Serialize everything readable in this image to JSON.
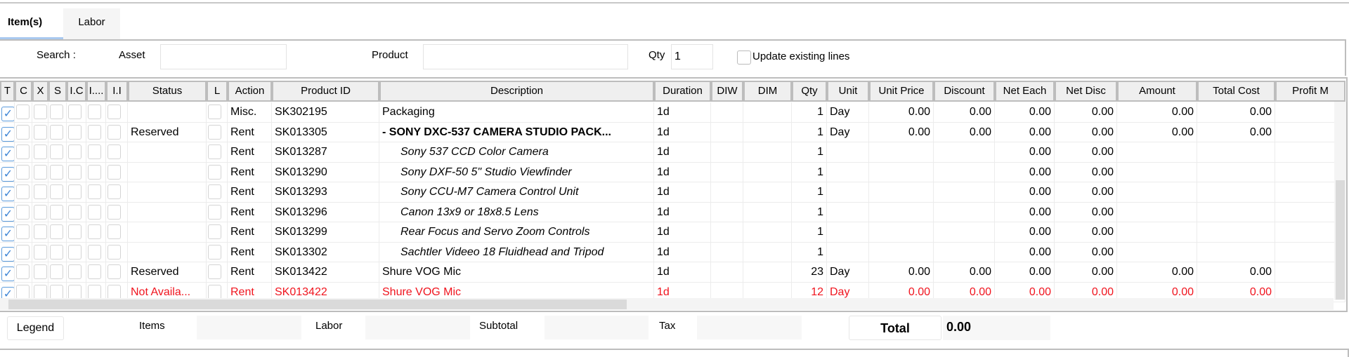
{
  "tabs": [
    {
      "label": "Item(s)",
      "active": true
    },
    {
      "label": "Labor",
      "active": false
    }
  ],
  "search": {
    "label": "Search :",
    "asset_label": "Asset",
    "asset_value": "",
    "product_label": "Product",
    "product_value": "",
    "qty_label": "Qty",
    "qty_value": "1",
    "update_label": "Update existing lines",
    "update_checked": false
  },
  "columns": [
    "T",
    "C",
    "X",
    "S",
    "I.C",
    "I....",
    "I.I",
    "Status",
    "L",
    "Action",
    "Product ID",
    "Description",
    "Duration",
    "DIW",
    "DIM",
    "Qty",
    "Unit",
    "Unit Price",
    "Discount",
    "Net Each",
    "Net Disc",
    "Amount",
    "Total Cost",
    "Profit M"
  ],
  "rows": [
    {
      "status": "",
      "action": "Misc.",
      "product_id": "SK302195",
      "description": "Packaging",
      "style": "normal",
      "duration": "1d",
      "diw": "",
      "dim": "",
      "qty": "1",
      "unit": "Day",
      "unit_price": "0.00",
      "discount": "0.00",
      "net_each": "0.00",
      "net_disc": "0.00",
      "amount": "0.00",
      "total_cost": "0.00",
      "profit": ""
    },
    {
      "status": "Reserved",
      "action": "Rent",
      "product_id": "SK013305",
      "description": "- SONY DXC-537 CAMERA STUDIO PACK...",
      "style": "bold",
      "duration": "1d",
      "diw": "",
      "dim": "",
      "qty": "1",
      "unit": "Day",
      "unit_price": "0.00",
      "discount": "0.00",
      "net_each": "0.00",
      "net_disc": "0.00",
      "amount": "0.00",
      "total_cost": "0.00",
      "profit": ""
    },
    {
      "status": "",
      "action": "Rent",
      "product_id": "SK013287",
      "description": "Sony 537 CCD Color Camera",
      "style": "italic",
      "duration": "1d",
      "diw": "",
      "dim": "",
      "qty": "1",
      "unit": "",
      "unit_price": "",
      "discount": "",
      "net_each": "0.00",
      "net_disc": "0.00",
      "amount": "",
      "total_cost": "",
      "profit": ""
    },
    {
      "status": "",
      "action": "Rent",
      "product_id": "SK013290",
      "description": "Sony DXF-50 5\" Studio Viewfinder",
      "style": "italic",
      "duration": "1d",
      "diw": "",
      "dim": "",
      "qty": "1",
      "unit": "",
      "unit_price": "",
      "discount": "",
      "net_each": "0.00",
      "net_disc": "0.00",
      "amount": "",
      "total_cost": "",
      "profit": ""
    },
    {
      "status": "",
      "action": "Rent",
      "product_id": "SK013293",
      "description": "Sony CCU-M7 Camera Control Unit",
      "style": "italic",
      "duration": "1d",
      "diw": "",
      "dim": "",
      "qty": "1",
      "unit": "",
      "unit_price": "",
      "discount": "",
      "net_each": "0.00",
      "net_disc": "0.00",
      "amount": "",
      "total_cost": "",
      "profit": ""
    },
    {
      "status": "",
      "action": "Rent",
      "product_id": "SK013296",
      "description": "Canon 13x9 or 18x8.5 Lens",
      "style": "italic",
      "duration": "1d",
      "diw": "",
      "dim": "",
      "qty": "1",
      "unit": "",
      "unit_price": "",
      "discount": "",
      "net_each": "0.00",
      "net_disc": "0.00",
      "amount": "",
      "total_cost": "",
      "profit": ""
    },
    {
      "status": "",
      "action": "Rent",
      "product_id": "SK013299",
      "description": "Rear Focus and Servo Zoom Controls",
      "style": "italic",
      "duration": "1d",
      "diw": "",
      "dim": "",
      "qty": "1",
      "unit": "",
      "unit_price": "",
      "discount": "",
      "net_each": "0.00",
      "net_disc": "0.00",
      "amount": "",
      "total_cost": "",
      "profit": ""
    },
    {
      "status": "",
      "action": "Rent",
      "product_id": "SK013302",
      "description": "Sachtler Videeo 18 Fluidhead and Tripod",
      "style": "italic",
      "duration": "1d",
      "diw": "",
      "dim": "",
      "qty": "1",
      "unit": "",
      "unit_price": "",
      "discount": "",
      "net_each": "0.00",
      "net_disc": "0.00",
      "amount": "",
      "total_cost": "",
      "profit": ""
    },
    {
      "status": "Reserved",
      "action": "Rent",
      "product_id": "SK013422",
      "description": "Shure VOG Mic",
      "style": "normal",
      "duration": "1d",
      "diw": "",
      "dim": "",
      "qty": "23",
      "unit": "Day",
      "unit_price": "0.00",
      "discount": "0.00",
      "net_each": "0.00",
      "net_disc": "0.00",
      "amount": "0.00",
      "total_cost": "0.00",
      "profit": ""
    },
    {
      "status": "Not Availa...",
      "action": "Rent",
      "product_id": "SK013422",
      "description": "Shure VOG Mic",
      "style": "normal",
      "duration": "1d",
      "diw": "",
      "dim": "",
      "qty": "12",
      "unit": "Day",
      "unit_price": "0.00",
      "discount": "0.00",
      "net_each": "0.00",
      "net_disc": "0.00",
      "amount": "0.00",
      "total_cost": "0.00",
      "profit": "",
      "color": "#f0141e"
    }
  ],
  "footer": {
    "legend_label": "Legend",
    "items_label": "Items",
    "items_value": "",
    "labor_label": "Labor",
    "labor_value": "",
    "subtotal_label": "Subtotal",
    "subtotal_value": "",
    "tax_label": "Tax",
    "tax_value": "",
    "total_label": "Total",
    "total_value": "0.00"
  },
  "colors": {
    "accent": "#a9c9ef",
    "check": "#3f86d6",
    "error": "#f0141e"
  }
}
